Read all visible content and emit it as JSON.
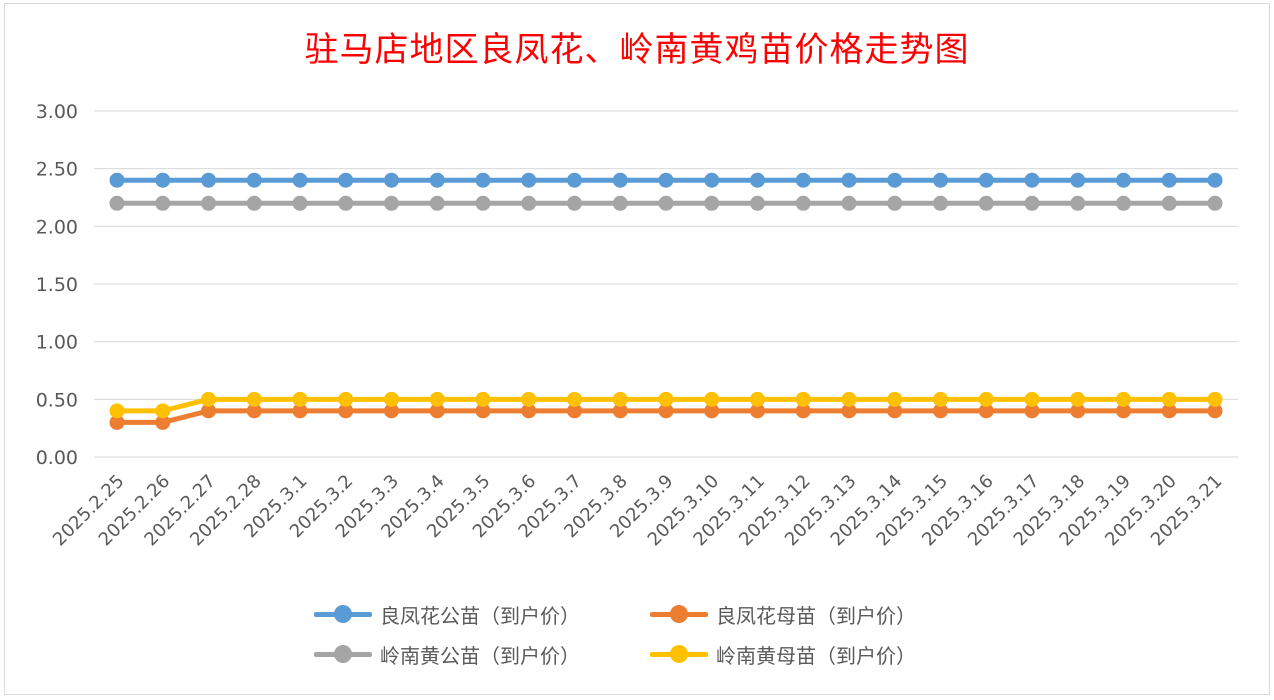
{
  "chart_data": {
    "type": "line",
    "title": "驻马店地区良凤花、岭南黄鸡苗价格走势图",
    "xlabel": "",
    "ylabel": "",
    "ylim": [
      0,
      3
    ],
    "y_ticks": [
      "0.00",
      "0.50",
      "1.00",
      "1.50",
      "2.00",
      "2.50",
      "3.00"
    ],
    "grid": true,
    "legend_position": "bottom",
    "categories": [
      "2025.2.25",
      "2025.2.26",
      "2025.2.27",
      "2025.2.28",
      "2025.3.1",
      "2025.3.2",
      "2025.3.3",
      "2025.3.4",
      "2025.3.5",
      "2025.3.6",
      "2025.3.7",
      "2025.3.8",
      "2025.3.9",
      "2025.3.10",
      "2025.3.11",
      "2025.3.12",
      "2025.3.13",
      "2025.3.14",
      "2025.3.15",
      "2025.3.16",
      "2025.3.17",
      "2025.3.18",
      "2025.3.19",
      "2025.3.20",
      "2025.3.21"
    ],
    "series": [
      {
        "name": "良凤花公苗（到户价）",
        "color": "#5b9bd5",
        "values": [
          2.4,
          2.4,
          2.4,
          2.4,
          2.4,
          2.4,
          2.4,
          2.4,
          2.4,
          2.4,
          2.4,
          2.4,
          2.4,
          2.4,
          2.4,
          2.4,
          2.4,
          2.4,
          2.4,
          2.4,
          2.4,
          2.4,
          2.4,
          2.4,
          2.4
        ]
      },
      {
        "name": "良凤花母苗（到户价）",
        "color": "#ed7d31",
        "values": [
          0.3,
          0.3,
          0.4,
          0.4,
          0.4,
          0.4,
          0.4,
          0.4,
          0.4,
          0.4,
          0.4,
          0.4,
          0.4,
          0.4,
          0.4,
          0.4,
          0.4,
          0.4,
          0.4,
          0.4,
          0.4,
          0.4,
          0.4,
          0.4,
          0.4
        ]
      },
      {
        "name": "岭南黄公苗（到户价）",
        "color": "#a5a5a5",
        "values": [
          2.2,
          2.2,
          2.2,
          2.2,
          2.2,
          2.2,
          2.2,
          2.2,
          2.2,
          2.2,
          2.2,
          2.2,
          2.2,
          2.2,
          2.2,
          2.2,
          2.2,
          2.2,
          2.2,
          2.2,
          2.2,
          2.2,
          2.2,
          2.2,
          2.2
        ]
      },
      {
        "name": "岭南黄母苗（到户价）",
        "color": "#ffc000",
        "values": [
          0.4,
          0.4,
          0.5,
          0.5,
          0.5,
          0.5,
          0.5,
          0.5,
          0.5,
          0.5,
          0.5,
          0.5,
          0.5,
          0.5,
          0.5,
          0.5,
          0.5,
          0.5,
          0.5,
          0.5,
          0.5,
          0.5,
          0.5,
          0.5,
          0.5
        ]
      }
    ]
  }
}
